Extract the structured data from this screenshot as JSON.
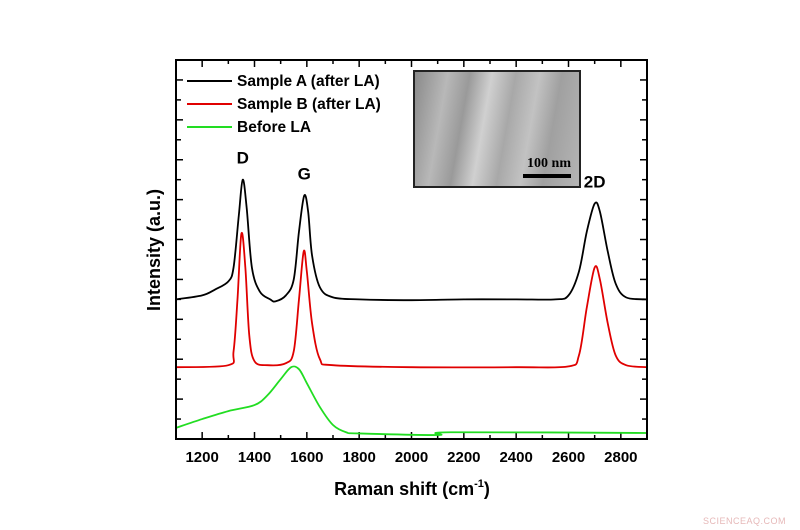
{
  "chart_data": {
    "type": "line",
    "xlabel": "Raman shift (cm",
    "xlabel_sup": "-1",
    "xlabel_end": ")",
    "ylabel": "Intensity (a.u.)",
    "xlim": [
      1100,
      2900
    ],
    "ylim": [
      0,
      9.5
    ],
    "x_ticks": [
      1200,
      1400,
      1600,
      1800,
      2000,
      2200,
      2400,
      2600,
      2800
    ],
    "y_tick_labels": "none",
    "grid": false,
    "legend_position": "top-left",
    "series": [
      {
        "name": "Sample A (after LA)",
        "color": "#000000",
        "x": [
          1100,
          1200,
          1250,
          1300,
          1320,
          1340,
          1355,
          1370,
          1390,
          1420,
          1460,
          1480,
          1520,
          1550,
          1570,
          1590,
          1605,
          1620,
          1650,
          1700,
          1800,
          2000,
          2200,
          2400,
          2550,
          2600,
          2640,
          2670,
          2700,
          2720,
          2750,
          2780,
          2820,
          2900
        ],
        "y": [
          3.5,
          3.6,
          3.75,
          3.95,
          4.3,
          5.6,
          6.5,
          5.8,
          4.3,
          3.7,
          3.5,
          3.45,
          3.6,
          4.0,
          5.2,
          6.1,
          5.7,
          4.6,
          3.8,
          3.55,
          3.5,
          3.48,
          3.5,
          3.5,
          3.5,
          3.6,
          4.2,
          5.2,
          5.9,
          5.7,
          4.7,
          3.9,
          3.55,
          3.5
        ]
      },
      {
        "name": "Sample B (after LA)",
        "color": "#e00000",
        "x": [
          1100,
          1300,
          1320,
          1335,
          1350,
          1365,
          1380,
          1400,
          1450,
          1520,
          1550,
          1570,
          1588,
          1600,
          1620,
          1650,
          1700,
          2000,
          2400,
          2600,
          2640,
          2670,
          2700,
          2720,
          2750,
          2780,
          2820,
          2900
        ],
        "y": [
          1.8,
          1.85,
          2.2,
          3.5,
          5.15,
          4.3,
          2.6,
          1.95,
          1.85,
          1.9,
          2.2,
          3.5,
          4.7,
          4.2,
          2.9,
          2.0,
          1.85,
          1.8,
          1.8,
          1.82,
          2.1,
          3.3,
          4.3,
          4.0,
          2.9,
          2.1,
          1.85,
          1.8
        ]
      },
      {
        "name": "Before LA",
        "color": "#22dd22",
        "x": [
          1100,
          1200,
          1300,
          1400,
          1450,
          1500,
          1540,
          1570,
          1600,
          1650,
          1700,
          1750,
          1800,
          2100,
          2150,
          2900
        ],
        "y": [
          0.28,
          0.5,
          0.7,
          0.85,
          1.1,
          1.5,
          1.8,
          1.75,
          1.4,
          0.8,
          0.35,
          0.17,
          0.14,
          0.1,
          0.17,
          0.15
        ]
      }
    ],
    "annotations": [
      {
        "text": "D",
        "x": 1355,
        "y": 6.9
      },
      {
        "text": "G",
        "x": 1590,
        "y": 6.5
      },
      {
        "text": "2D",
        "x": 2700,
        "y": 6.3
      }
    ],
    "inset": {
      "scale_bar_label": "100 nm"
    }
  },
  "watermark": "SCIENCEAQ.COM"
}
